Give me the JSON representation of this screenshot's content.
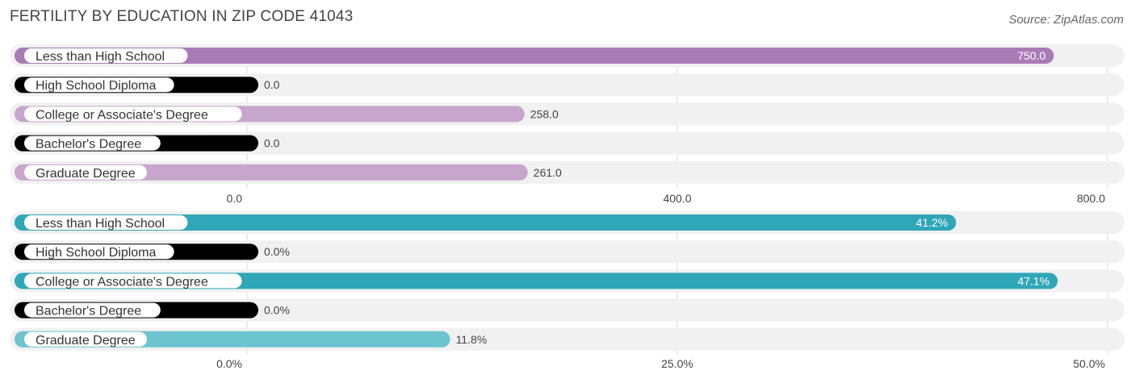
{
  "header": {
    "title": "FERTILITY BY EDUCATION IN ZIP CODE 41043",
    "source": "Source: ZipAtlas.com"
  },
  "colors": {
    "top_strong": "#a97bb7",
    "top_light": "#c7a6cc",
    "top_faint": "#d6bedb",
    "bottom_strong": "#2fa7b8",
    "bottom_light": "#6cc4cf",
    "bottom_faint": "#8dd2da",
    "track": "#f1f1f1",
    "grid": "#d9d9d9"
  },
  "chart_data": [
    {
      "type": "bar",
      "orientation": "horizontal",
      "name": "Fertility count",
      "categories": [
        "Less than High School",
        "High School Diploma",
        "College or Associate's Degree",
        "Bachelor's Degree",
        "Graduate Degree"
      ],
      "values": [
        750.0,
        0.0,
        258.0,
        0.0,
        261.0
      ],
      "value_labels": [
        "750.0",
        "0.0",
        "258.0",
        "0.0",
        "261.0"
      ],
      "xlim": [
        0,
        800
      ],
      "ticks": [
        0,
        400,
        800
      ],
      "tick_labels": [
        "0.0",
        "400.0",
        "800.0"
      ]
    },
    {
      "type": "bar",
      "orientation": "horizontal",
      "name": "Fertility rate",
      "categories": [
        "Less than High School",
        "High School Diploma",
        "College or Associate's Degree",
        "Bachelor's Degree",
        "Graduate Degree"
      ],
      "values": [
        41.2,
        0.0,
        47.1,
        0.0,
        11.8
      ],
      "value_labels": [
        "41.2%",
        "0.0%",
        "47.1%",
        "0.0%",
        "11.8%"
      ],
      "xlim": [
        0,
        50
      ],
      "ticks": [
        0,
        25,
        50
      ],
      "tick_labels": [
        "0.0%",
        "25.0%",
        "50.0%"
      ]
    }
  ]
}
